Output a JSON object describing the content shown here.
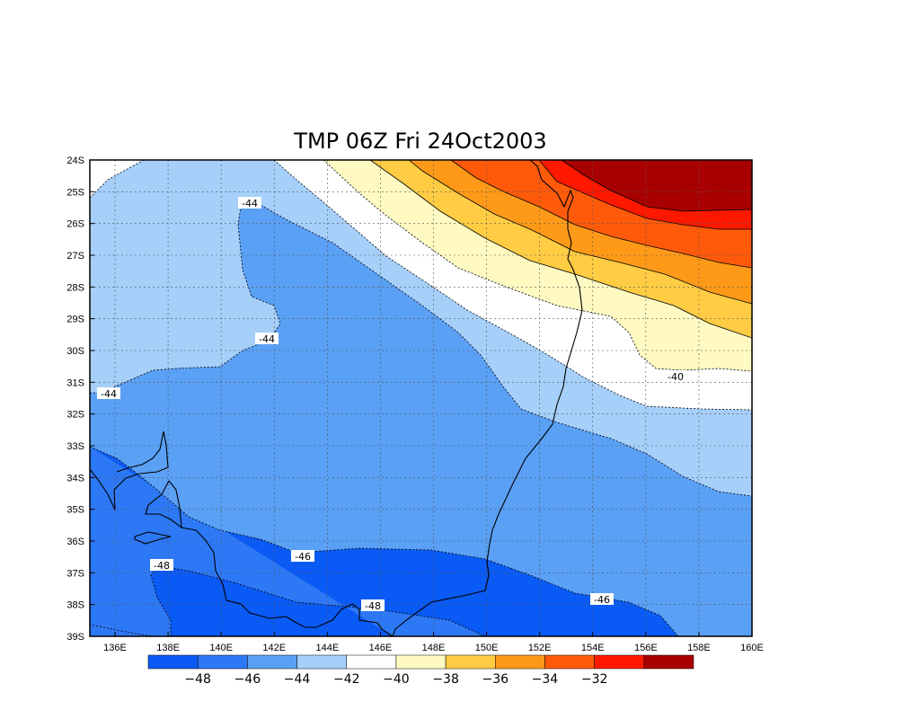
{
  "title": "TMP 06Z Fri 24Oct2003",
  "lat_labels": [
    "24S",
    "25S",
    "26S",
    "27S",
    "28S",
    "29S",
    "30S",
    "31S",
    "32S",
    "33S",
    "34S",
    "35S",
    "36S",
    "37S",
    "38S",
    "39S"
  ],
  "lon_labels": [
    "136E",
    "138E",
    "140E",
    "142E",
    "144E",
    "146E",
    "148E",
    "150E",
    "152E",
    "154E",
    "156E",
    "158E",
    "160E"
  ],
  "colorbar": {
    "colors": [
      "#0a5af5",
      "#2d78f5",
      "#5aa0f5",
      "#a6cffa",
      "#ffffff",
      "#fffac2",
      "#ffcc44",
      "#ff9a18",
      "#ff5a0a",
      "#ff1800",
      "#a80000"
    ],
    "labels": [
      "−48",
      "−46",
      "−44",
      "−42",
      "−40",
      "−38",
      "−36",
      "−34",
      "−32"
    ]
  },
  "contour_labels": [
    "-44",
    "-44",
    "-44",
    "-46",
    "-48",
    "-48",
    "-46",
    "-40"
  ],
  "chart_data": {
    "type": "heatmap",
    "title": "TMP 06Z Fri 24Oct2003",
    "variable": "TMP",
    "time": "06Z Fri 24Oct2003",
    "xlabel": "",
    "ylabel": "",
    "x_range": [
      "135E",
      "160E"
    ],
    "y_range": [
      "24S",
      "39S"
    ],
    "contour_levels": [
      -48,
      -46,
      -44,
      -42,
      -40,
      -38,
      -36,
      -34,
      -32
    ],
    "labeled_contours": [
      -48,
      -46,
      -44,
      -40
    ],
    "grid": true
  }
}
